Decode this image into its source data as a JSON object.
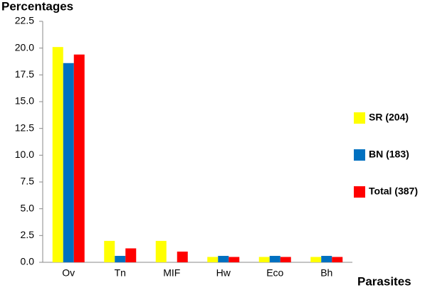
{
  "chart_data": {
    "type": "bar",
    "y_label": "Percentages",
    "x_label": "Parasites",
    "categories": [
      "Ov",
      "Tn",
      "MIF",
      "Hw",
      "Eco",
      "Bh"
    ],
    "series": [
      {
        "name": "SR (204)",
        "color": "#ffff00",
        "values": [
          20.1,
          2.0,
          2.0,
          0.5,
          0.5,
          0.5
        ]
      },
      {
        "name": "BN (183)",
        "color": "#0070c0",
        "values": [
          18.6,
          0.6,
          0,
          0.6,
          0.6,
          0.6
        ]
      },
      {
        "name": "Total (387)",
        "color": "#ff0000",
        "values": [
          19.4,
          1.3,
          1.0,
          0.5,
          0.5,
          0.5
        ]
      }
    ],
    "ylim": [
      0,
      22.5
    ],
    "yticks": [
      {
        "value": 0,
        "label": "0.0"
      },
      2.5,
      {
        "value": 5,
        "label": "5.0"
      },
      7.5,
      {
        "value": 10,
        "label": "10.0"
      },
      12.5,
      {
        "value": 15,
        "label": "15.0"
      },
      17.5,
      {
        "value": 20,
        "label": "20.0"
      },
      22.5
    ],
    "grid": false,
    "legend": "right"
  }
}
